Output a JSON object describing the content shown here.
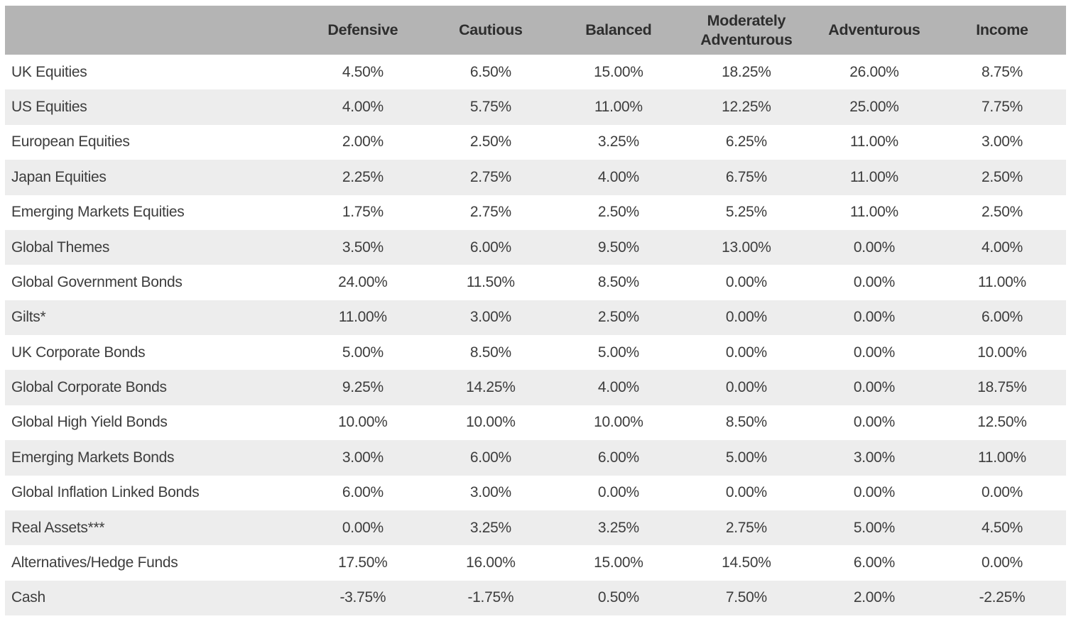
{
  "colors": {
    "header_background": "#b4b4b4",
    "header_text": "#2e2e2e",
    "row_stripe_background": "#ededed",
    "row_background": "#ffffff",
    "body_text": "#3d3d3d"
  },
  "table": {
    "corner_label": "",
    "columns": [
      "Defensive",
      "Cautious",
      "Balanced",
      "Moderately Adventurous",
      "Adventurous",
      "Income"
    ],
    "rows": [
      {
        "label": "UK Equities",
        "values": [
          "4.50%",
          "6.50%",
          "15.00%",
          "18.25%",
          "26.00%",
          "8.75%"
        ]
      },
      {
        "label": "US Equities",
        "values": [
          "4.00%",
          "5.75%",
          "11.00%",
          "12.25%",
          "25.00%",
          "7.75%"
        ]
      },
      {
        "label": "European Equities",
        "values": [
          "2.00%",
          "2.50%",
          "3.25%",
          "6.25%",
          "11.00%",
          "3.00%"
        ]
      },
      {
        "label": "Japan Equities",
        "values": [
          "2.25%",
          "2.75%",
          "4.00%",
          "6.75%",
          "11.00%",
          "2.50%"
        ]
      },
      {
        "label": "Emerging Markets Equities",
        "values": [
          "1.75%",
          "2.75%",
          "2.50%",
          "5.25%",
          "11.00%",
          "2.50%"
        ]
      },
      {
        "label": "Global Themes",
        "values": [
          "3.50%",
          "6.00%",
          "9.50%",
          "13.00%",
          "0.00%",
          "4.00%"
        ]
      },
      {
        "label": "Global Government Bonds",
        "values": [
          "24.00%",
          "11.50%",
          "8.50%",
          "0.00%",
          "0.00%",
          "11.00%"
        ]
      },
      {
        "label": "Gilts*",
        "values": [
          "11.00%",
          "3.00%",
          "2.50%",
          "0.00%",
          "0.00%",
          "6.00%"
        ]
      },
      {
        "label": "UK Corporate Bonds",
        "values": [
          "5.00%",
          "8.50%",
          "5.00%",
          "0.00%",
          "0.00%",
          "10.00%"
        ]
      },
      {
        "label": "Global Corporate Bonds",
        "values": [
          "9.25%",
          "14.25%",
          "4.00%",
          "0.00%",
          "0.00%",
          "18.75%"
        ]
      },
      {
        "label": "Global High Yield Bonds",
        "values": [
          "10.00%",
          "10.00%",
          "10.00%",
          "8.50%",
          "0.00%",
          "12.50%"
        ]
      },
      {
        "label": "Emerging Markets Bonds",
        "values": [
          "3.00%",
          "6.00%",
          "6.00%",
          "5.00%",
          "3.00%",
          "11.00%"
        ]
      },
      {
        "label": "Global Inflation Linked Bonds",
        "values": [
          "6.00%",
          "3.00%",
          "0.00%",
          "0.00%",
          "0.00%",
          "0.00%"
        ]
      },
      {
        "label": "Real Assets***",
        "values": [
          "0.00%",
          "3.25%",
          "3.25%",
          "2.75%",
          "5.00%",
          "4.50%"
        ]
      },
      {
        "label": "Alternatives/Hedge Funds",
        "values": [
          "17.50%",
          "16.00%",
          "15.00%",
          "14.50%",
          "6.00%",
          "0.00%"
        ]
      },
      {
        "label": "Cash",
        "values": [
          "-3.75%",
          "-1.75%",
          "0.50%",
          "7.50%",
          "2.00%",
          "-2.25%"
        ]
      }
    ]
  }
}
